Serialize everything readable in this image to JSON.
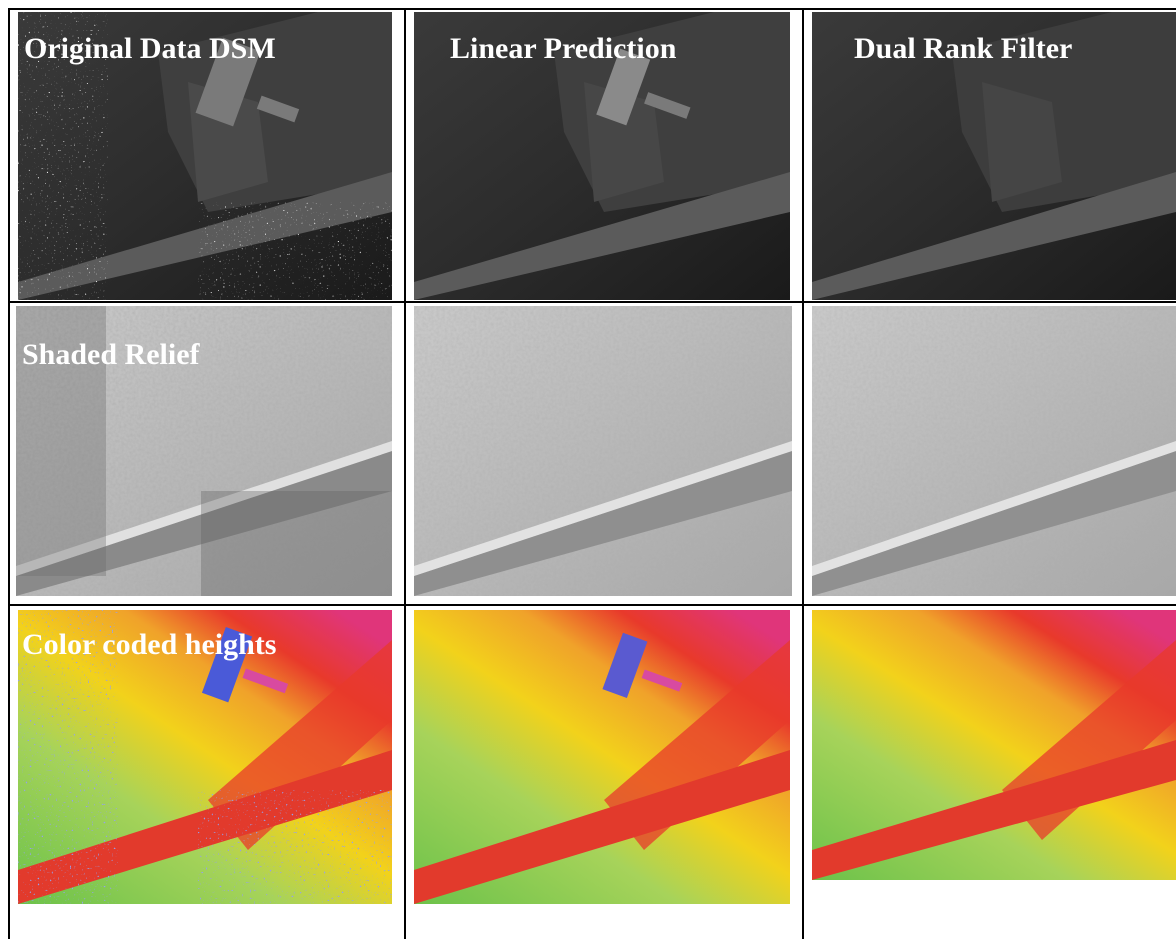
{
  "row_labels": {
    "dsm": "Original Data DSM",
    "shaded": "Shaded Relief",
    "color": "Color coded heights"
  },
  "column_labels": {
    "linear": "Linear Prediction",
    "dual": "Dual Rank Filter"
  },
  "colors": {
    "grid_line": "#000000",
    "label_text": "#ffffff",
    "height_low": "#6cc24a",
    "height_mid": "#f2d21b",
    "height_high": "#e8392b",
    "height_top": "#e0357a",
    "height_outlier": "#4a5ad8"
  }
}
